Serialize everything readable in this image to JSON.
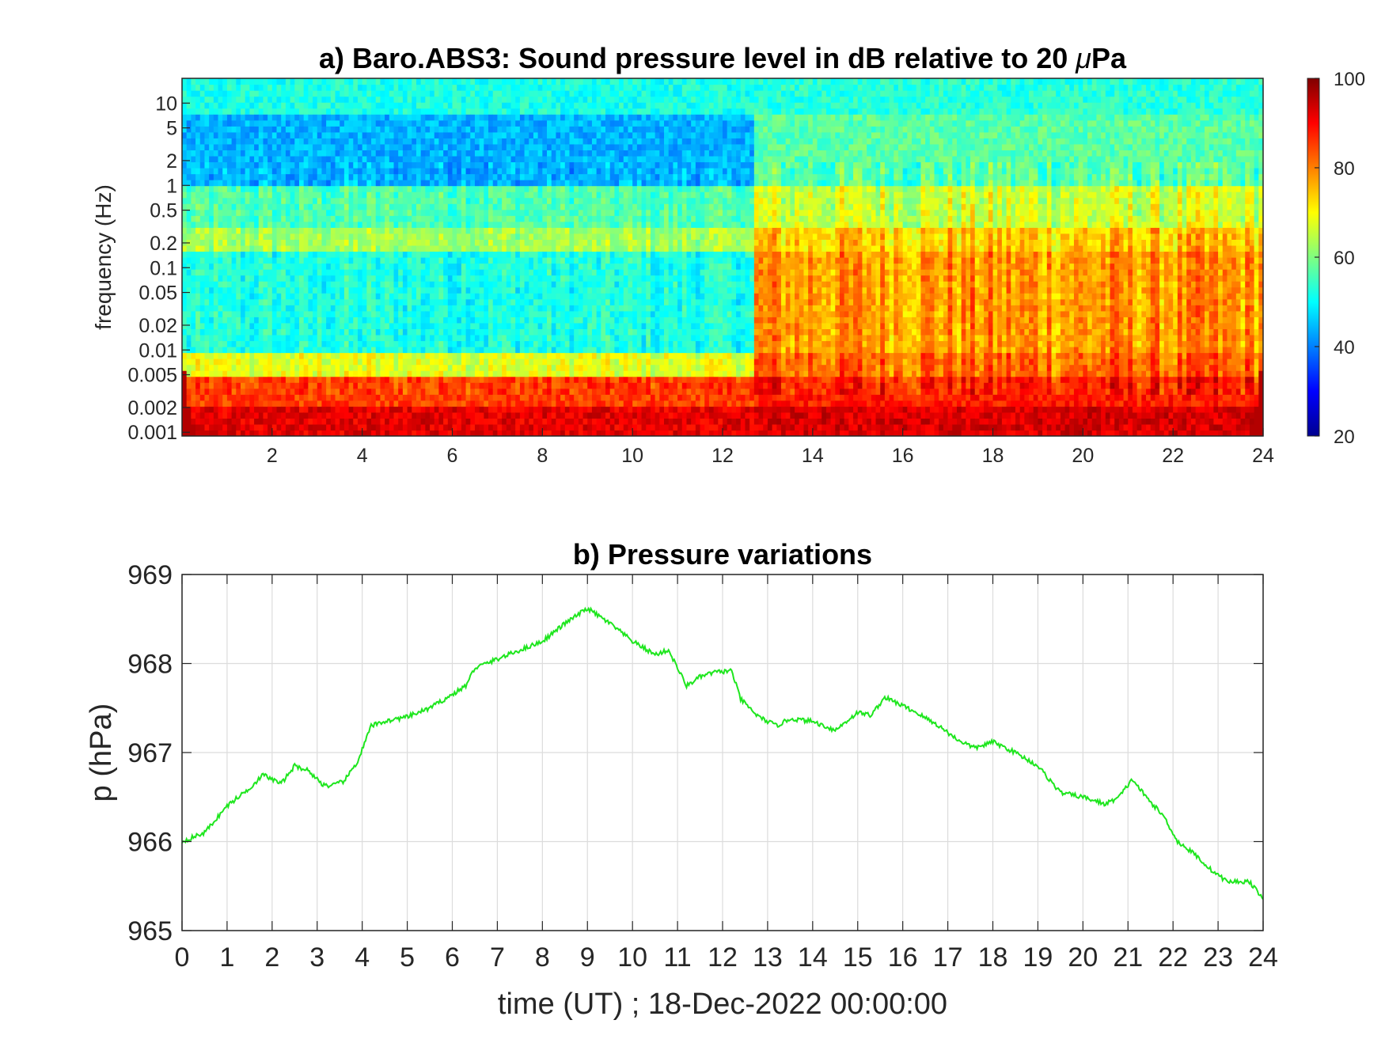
{
  "chart_data": [
    {
      "type": "heatmap",
      "title_main": "a) Baro.ABS3: Sound pressure level in dB relative to 20 ",
      "title_unit_mu": "μ",
      "title_unit_rest": "Pa",
      "ylabel": "frequency (Hz)",
      "y_scale": "log",
      "xlim": [
        0,
        24
      ],
      "ylim": [
        0.0009,
        20
      ],
      "x_ticks": [
        "2",
        "4",
        "6",
        "8",
        "10",
        "12",
        "14",
        "16",
        "18",
        "20",
        "22",
        "24"
      ],
      "y_ticks": [
        "10",
        "5",
        "2",
        "1",
        "0.5",
        "0.2",
        "0.1",
        "0.05",
        "0.02",
        "0.01",
        "0.005",
        "0.002",
        "0.001"
      ],
      "colorbar": {
        "range": [
          20,
          100
        ],
        "ticks": [
          "100",
          "80",
          "60",
          "40",
          "20"
        ],
        "colormap": "jet"
      },
      "level_profile": {
        "before_12.7h": {
          "0.001-0.002 Hz": 92,
          "0.002-0.005 Hz": 85,
          "0.005-0.01 Hz": 68,
          "0.01-0.15 Hz": 52,
          "0.15-0.3 Hz": 63,
          "0.3-1 Hz": 56,
          "1-7 Hz": 44,
          "7-20 Hz": 52
        },
        "after_12.7h": {
          "0.001-0.002 Hz": 93,
          "0.002-0.005 Hz": 88,
          "0.005-0.01 Hz": 82,
          "0.01-0.15 Hz": 78,
          "0.15-0.3 Hz": 74,
          "0.3-1 Hz": 66,
          "1-7 Hz": 57,
          "7-20 Hz": 53
        }
      }
    },
    {
      "type": "line",
      "title": "b) Pressure variations",
      "xlabel": "time (UT) ; 18-Dec-2022 00:00:00",
      "ylabel": "p (hPa)",
      "xlim": [
        0,
        24
      ],
      "ylim": [
        965,
        969
      ],
      "grid": true,
      "x_ticks": [
        "0",
        "1",
        "2",
        "3",
        "4",
        "5",
        "6",
        "7",
        "8",
        "9",
        "10",
        "11",
        "12",
        "13",
        "14",
        "15",
        "16",
        "17",
        "18",
        "19",
        "20",
        "21",
        "22",
        "23",
        "24"
      ],
      "y_ticks": [
        "965",
        "966",
        "967",
        "968",
        "969"
      ],
      "series": [
        {
          "color": "#1ee61e",
          "x": [
            0,
            0.5,
            1,
            1.5,
            1.8,
            2.2,
            2.5,
            2.8,
            3.1,
            3.3,
            3.6,
            3.9,
            4.2,
            4.5,
            5,
            5.5,
            6,
            6.3,
            6.5,
            7,
            7.5,
            8,
            8.5,
            9,
            9.5,
            10,
            10.5,
            10.8,
            11.2,
            11.5,
            11.8,
            12.2,
            12.4,
            12.8,
            13.2,
            13.5,
            14,
            14.5,
            15,
            15.3,
            15.6,
            15.9,
            16.3,
            16.8,
            17.2,
            17.6,
            18,
            18.5,
            19,
            19.5,
            20,
            20.5,
            20.8,
            21.1,
            21.4,
            21.8,
            22.1,
            22.5,
            22.8,
            23.2,
            23.7,
            24
          ],
          "y": [
            966.0,
            966.1,
            966.4,
            966.6,
            966.75,
            966.65,
            966.85,
            966.8,
            966.65,
            966.62,
            966.68,
            966.9,
            967.3,
            967.35,
            967.4,
            967.5,
            967.65,
            967.75,
            967.95,
            968.05,
            968.15,
            968.25,
            968.45,
            968.62,
            968.45,
            968.25,
            968.1,
            968.15,
            967.75,
            967.85,
            967.9,
            967.92,
            967.6,
            967.4,
            967.3,
            967.38,
            967.35,
            967.25,
            967.45,
            967.42,
            967.62,
            967.55,
            967.45,
            967.3,
            967.15,
            967.05,
            967.12,
            967.0,
            966.85,
            966.55,
            966.5,
            966.42,
            966.5,
            966.7,
            966.5,
            966.28,
            966.0,
            965.85,
            965.7,
            965.55,
            965.55,
            965.35
          ]
        }
      ]
    }
  ]
}
